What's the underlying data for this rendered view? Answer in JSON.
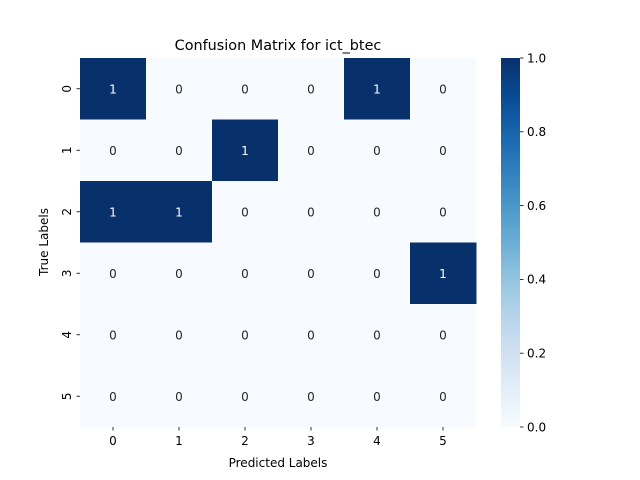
{
  "chart_data": {
    "type": "heatmap",
    "title": "Confusion Matrix for ict_btec",
    "xlabel": "Predicted Labels",
    "ylabel": "True Labels",
    "x_categories": [
      "0",
      "1",
      "2",
      "3",
      "4",
      "5"
    ],
    "y_categories": [
      "0",
      "1",
      "2",
      "3",
      "4",
      "5"
    ],
    "values": [
      [
        1,
        0,
        0,
        0,
        1,
        0
      ],
      [
        0,
        0,
        1,
        0,
        0,
        0
      ],
      [
        1,
        1,
        0,
        0,
        0,
        0
      ],
      [
        0,
        0,
        0,
        0,
        0,
        1
      ],
      [
        0,
        0,
        0,
        0,
        0,
        0
      ],
      [
        0,
        0,
        0,
        0,
        0,
        0
      ]
    ],
    "colorbar": {
      "range": [
        0.0,
        1.0
      ],
      "ticks": [
        "0.0",
        "0.2",
        "0.4",
        "0.6",
        "0.8",
        "1.0"
      ]
    },
    "colormap": "Blues",
    "colors": {
      "low": "#f7fbff",
      "high": "#08306b"
    },
    "annotation_colors": {
      "on_low": "#262626",
      "on_high": "#ffffff"
    }
  }
}
